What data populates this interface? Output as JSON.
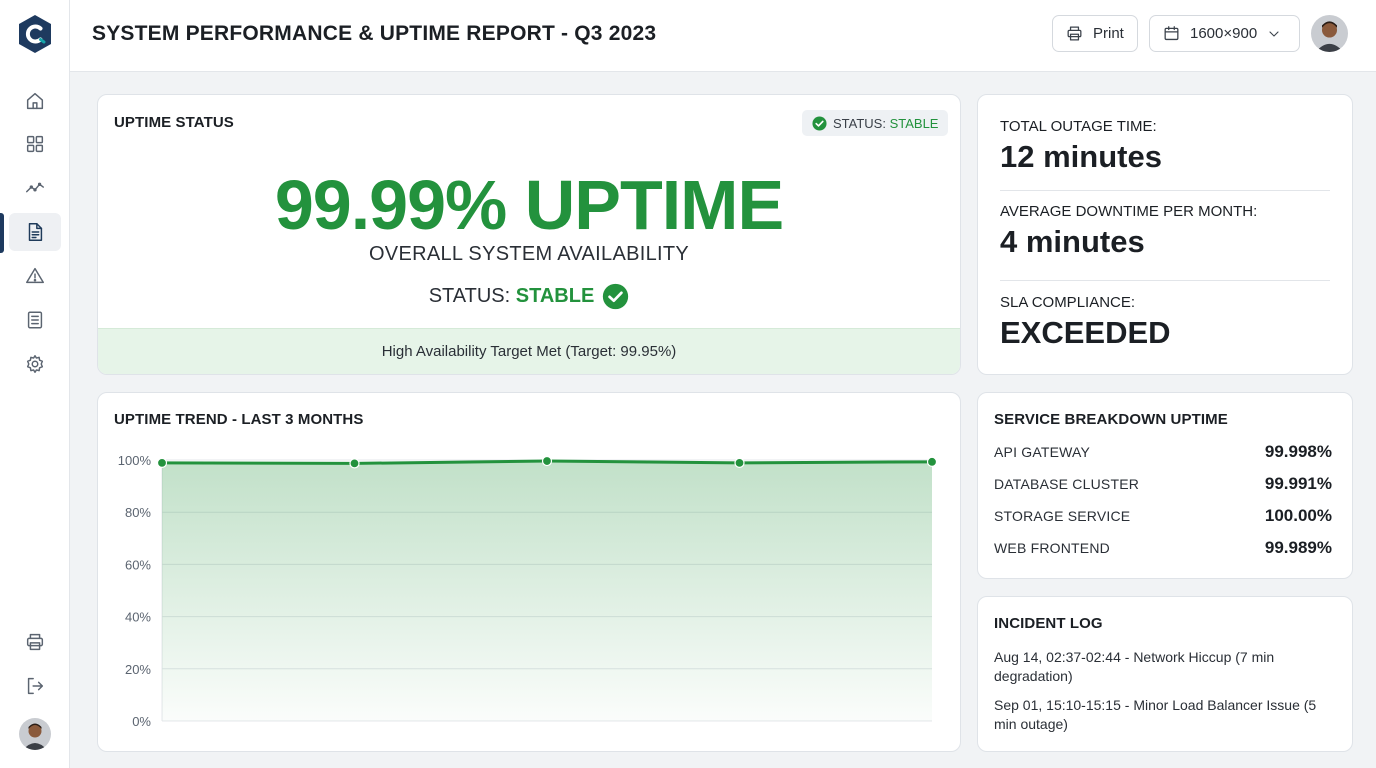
{
  "header": {
    "title": "SYSTEM PERFORMANCE & UPTIME REPORT - Q3 2023",
    "print_label": "Print",
    "resolution_label": "1600×900"
  },
  "sidebar": {
    "items": [
      {
        "name": "home",
        "icon": "home-icon"
      },
      {
        "name": "dashboard",
        "icon": "grid-icon"
      },
      {
        "name": "analytics",
        "icon": "trend-icon"
      },
      {
        "name": "reports",
        "icon": "document-icon",
        "active": true
      },
      {
        "name": "alerts",
        "icon": "warning-icon"
      },
      {
        "name": "logs",
        "icon": "list-icon"
      },
      {
        "name": "settings",
        "icon": "gear-icon"
      }
    ],
    "bottom": [
      {
        "name": "print",
        "icon": "printer-icon"
      },
      {
        "name": "logout",
        "icon": "logout-icon"
      }
    ]
  },
  "uptime_status": {
    "title": "UPTIME STATUS",
    "pill_prefix": "STATUS: ",
    "pill_value": "STABLE",
    "big_value": "99.99% UPTIME",
    "subtitle": "OVERALL SYSTEM AVAILABILITY",
    "status_prefix": "STATUS: ",
    "status_value": "STABLE",
    "target_text": "High Availability Target Met (Target: 99.95%)"
  },
  "summary": {
    "total_outage_label": "TOTAL OUTAGE TIME:",
    "total_outage_value": "12 minutes",
    "avg_downtime_label": "AVERAGE DOWNTIME PER MONTH:",
    "avg_downtime_value": "4 minutes",
    "sla_label": "SLA COMPLIANCE:",
    "sla_value": "EXCEEDED"
  },
  "service_breakdown": {
    "title": "SERVICE BREAKDOWN UPTIME",
    "rows": [
      {
        "name": "API GATEWAY",
        "value": "99.998%"
      },
      {
        "name": "DATABASE CLUSTER",
        "value": "99.991%"
      },
      {
        "name": "STORAGE SERVICE",
        "value": "100.00%"
      },
      {
        "name": "WEB FRONTEND",
        "value": "99.989%"
      }
    ]
  },
  "incident_log": {
    "title": "INCIDENT LOG",
    "entries": [
      "Aug 14, 02:37-02:44 - Network Hiccup (7 min degradation)",
      "Sep 01, 15:10-15:15 - Minor Load Balancer Issue (5 min outage)"
    ]
  },
  "colors": {
    "accent_green": "#23923d",
    "brand_navy": "#1e3a5f",
    "logo_teal": "#16a3a8"
  },
  "chart_data": {
    "type": "area",
    "title": "UPTIME TREND - LAST 3 MONTHS",
    "y_tick_labels": [
      "100%",
      "80%",
      "60%",
      "40%",
      "20%",
      "0%"
    ],
    "ylim": [
      0,
      100
    ],
    "grid": true,
    "series": [
      {
        "values": [
          98.9,
          98.7,
          99.6,
          98.9,
          99.3
        ]
      }
    ]
  }
}
